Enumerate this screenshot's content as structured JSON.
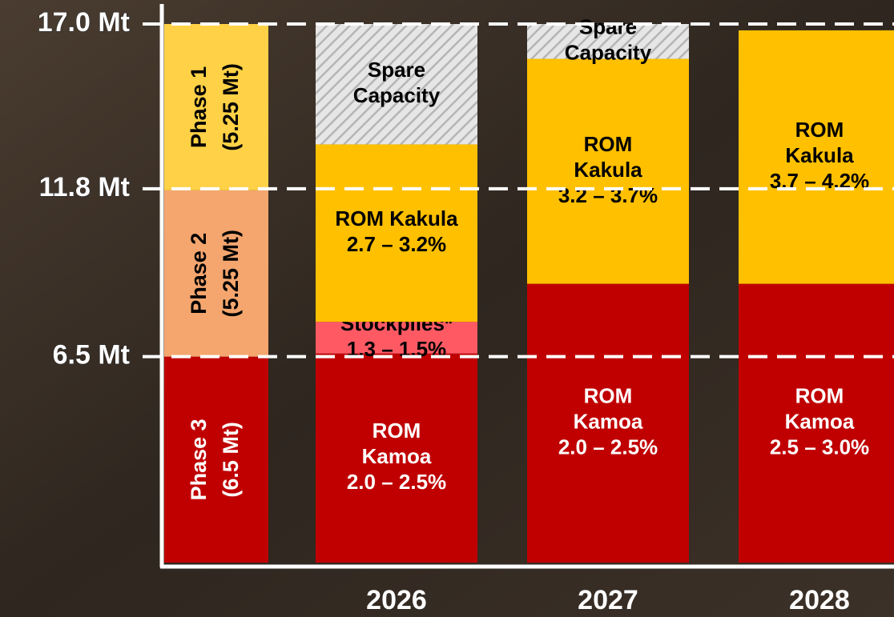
{
  "chart_data": {
    "type": "bar",
    "stacked": true,
    "categories": [
      2026,
      2027,
      2028
    ],
    "ylim": [
      0,
      17
    ],
    "yticks": [
      {
        "value": 6.5,
        "label": "6.5 Mt"
      },
      {
        "value": 11.8,
        "label": "11.8 Mt"
      },
      {
        "value": 17,
        "label": "17.0 Mt"
      }
    ],
    "grid": true,
    "phases": {
      "names": [
        "Phase 3",
        "Phase 2",
        "Phase 1"
      ],
      "values": [
        6.5,
        5.25,
        5.25
      ],
      "value_labels": [
        "(6.5 Mt)",
        "(5.25 Mt)",
        "(5.25 Mt)"
      ],
      "colors": [
        "#c00000",
        "#f4a66e",
        "#ffd146"
      ]
    },
    "series": [
      {
        "color": "#c00000",
        "values": [
          6.6,
          8.8,
          8.8
        ],
        "labels": [
          [
            "ROM",
            "Kamoa",
            "2.0 – 2.5%"
          ],
          [
            "ROM",
            "Kamoa",
            "2.0 – 2.5%"
          ],
          [
            "ROM",
            "Kamoa",
            "2.5 – 3.0%"
          ]
        ]
      },
      {
        "color": "#ff5a64",
        "values": [
          1.0,
          null,
          null
        ],
        "labels": [
          [
            "Stockpiles*",
            "1.3 – 1.5%"
          ],
          null,
          null
        ]
      },
      {
        "color": "#ffc000",
        "values": [
          5.6,
          7.1,
          8.0
        ],
        "labels": [
          [
            "ROM Kakula",
            "2.7 – 3.2%"
          ],
          [
            "ROM",
            "Kakula",
            "3.2 – 3.7%"
          ],
          [
            "ROM",
            "Kakula",
            "3.7 – 4.2%"
          ]
        ]
      },
      {
        "color": "#d9d9d9",
        "pattern": "hatch",
        "values": [
          3.8,
          1.1,
          null
        ],
        "labels": [
          [
            "Spare",
            "Capacity"
          ],
          [
            "Spare",
            "Capacity"
          ],
          null
        ]
      }
    ]
  }
}
